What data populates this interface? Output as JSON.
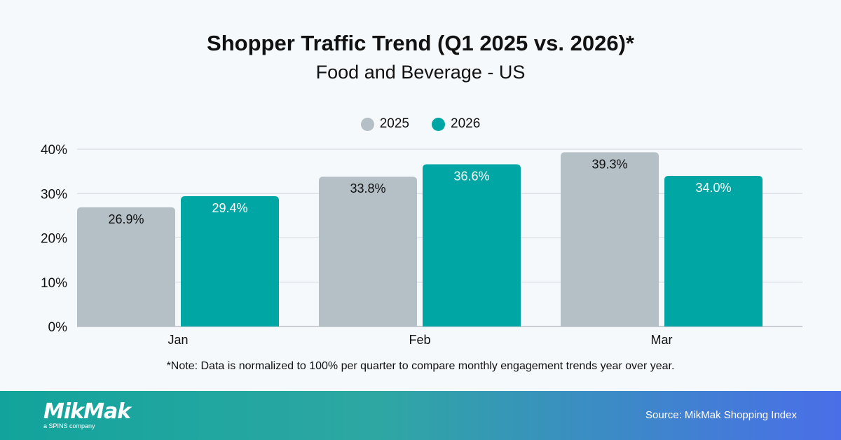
{
  "chart_data": {
    "type": "bar",
    "title": "Shopper Traffic Trend (Q1 2025 vs. 2026)*",
    "subtitle": "Food and Beverage - US",
    "categories": [
      "Jan",
      "Feb",
      "Mar"
    ],
    "series": [
      {
        "name": "2025",
        "values": [
          26.9,
          33.8,
          39.3
        ],
        "labels": [
          "26.9%",
          "33.8%",
          "39.3%"
        ],
        "color": "#b4bfc6"
      },
      {
        "name": "2026",
        "values": [
          29.4,
          36.6,
          34.0
        ],
        "labels": [
          "29.4%",
          "36.6%",
          "34.0%"
        ],
        "color": "#00a6a3"
      }
    ],
    "yticks": [
      0,
      10,
      20,
      30,
      40
    ],
    "ytick_labels": [
      "0%",
      "10%",
      "20%",
      "30%",
      "40%"
    ],
    "ylim": [
      0,
      40
    ],
    "grid": true,
    "legend_placement": "top-center",
    "note": "*Note: Data is normalized to 100% per quarter to compare monthly engagement trends year over year."
  },
  "footer": {
    "logo_text": "MikMak",
    "logo_subtext": "a SPINS company",
    "source": "Source: MikMak Shopping Index"
  }
}
